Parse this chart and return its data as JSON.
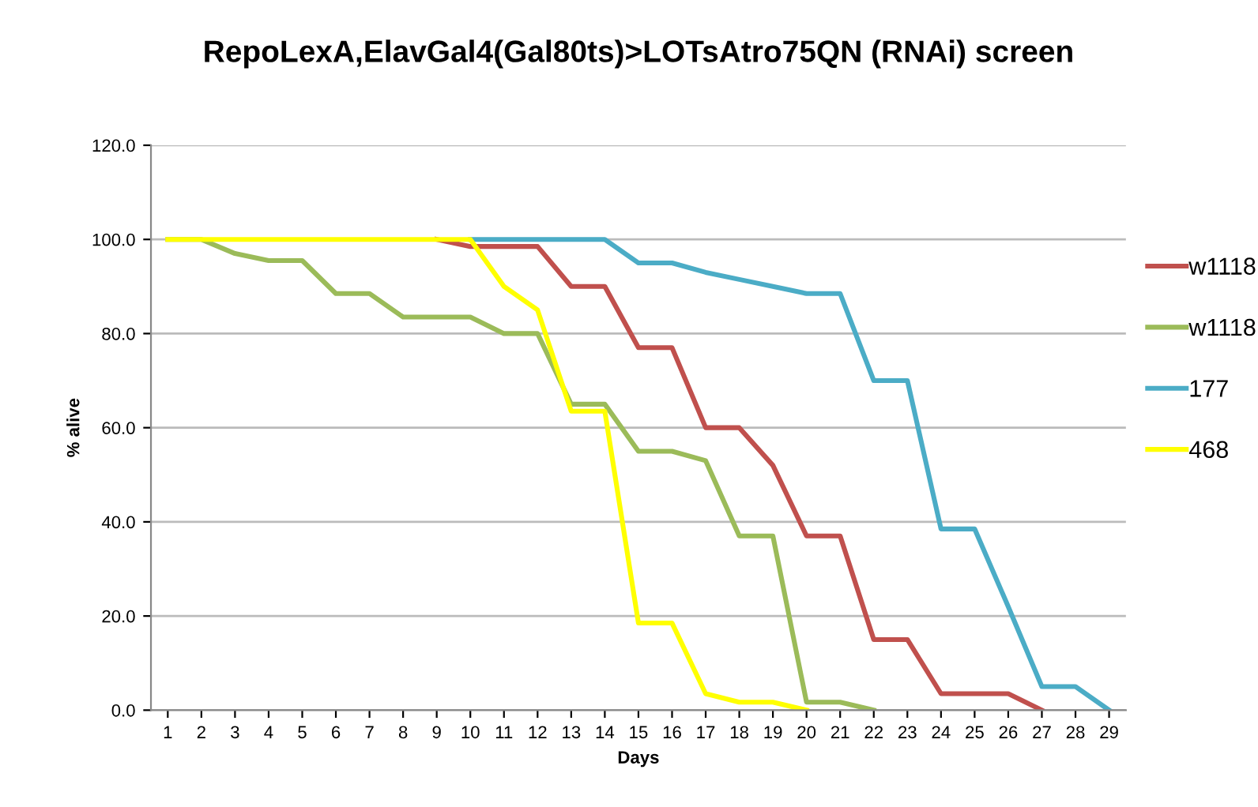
{
  "chart_data": {
    "type": "line",
    "title": "RepoLexA,ElavGal4(Gal80ts)>LOTsAtro75QN (RNAi) screen",
    "xlabel": "Days",
    "ylabel": "% alive",
    "categories": [
      "1",
      "2",
      "3",
      "4",
      "5",
      "6",
      "7",
      "8",
      "9",
      "10",
      "11",
      "12",
      "13",
      "14",
      "15",
      "16",
      "17",
      "18",
      "19",
      "20",
      "21",
      "22",
      "23",
      "24",
      "25",
      "26",
      "27",
      "28",
      "29"
    ],
    "series": [
      {
        "name": "w1118",
        "color": "#c0504d",
        "values": [
          null,
          null,
          null,
          null,
          null,
          null,
          null,
          null,
          100,
          98.5,
          98.5,
          98.5,
          90,
          90,
          77,
          77,
          60,
          60,
          52,
          37,
          37,
          15,
          15,
          3.5,
          3.5,
          3.5,
          0,
          null,
          null
        ]
      },
      {
        "name": "w1118",
        "color": "#9bbb59",
        "values": [
          100,
          100,
          97,
          95.5,
          95.5,
          88.5,
          88.5,
          83.5,
          83.5,
          83.5,
          80,
          80,
          65,
          65,
          55,
          55,
          53,
          37,
          37,
          1.7,
          1.7,
          0,
          null,
          null,
          null,
          null,
          null,
          null,
          null
        ]
      },
      {
        "name": "177",
        "color": "#4bacc6",
        "values": [
          null,
          null,
          null,
          null,
          null,
          null,
          null,
          null,
          null,
          100,
          100,
          100,
          100,
          100,
          95,
          95,
          93,
          91.5,
          90,
          88.5,
          88.5,
          70,
          70,
          38.5,
          38.5,
          22,
          5,
          5,
          0
        ]
      },
      {
        "name": "468",
        "color": "#ffff00",
        "values": [
          100,
          100,
          100,
          100,
          100,
          100,
          100,
          100,
          100,
          100,
          90,
          85,
          63.5,
          63.5,
          18.5,
          18.5,
          3.5,
          1.7,
          1.7,
          0,
          null,
          null,
          null,
          null,
          null,
          null,
          null,
          null,
          null
        ]
      }
    ],
    "ylim": [
      0,
      120
    ],
    "yticks": [
      {
        "value": 0,
        "label": "0.0"
      },
      {
        "value": 20,
        "label": "20.0"
      },
      {
        "value": 40,
        "label": "40.0"
      },
      {
        "value": 60,
        "label": "60.0"
      },
      {
        "value": 80,
        "label": "80.0"
      },
      {
        "value": 100,
        "label": "100.0"
      },
      {
        "value": 120,
        "label": "120.0"
      }
    ],
    "grid": "y",
    "legend": "right",
    "marker": "none",
    "line_style": "solid"
  }
}
